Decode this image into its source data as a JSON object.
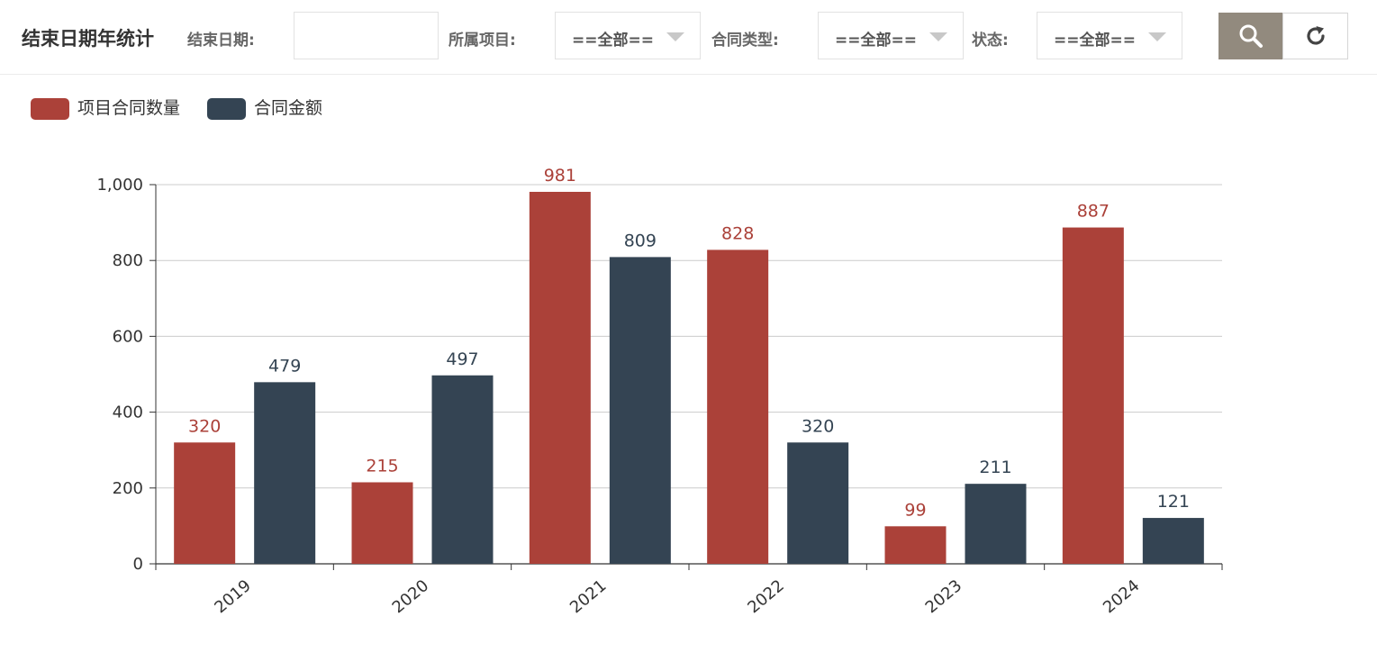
{
  "header": {
    "title": "结束日期年统计",
    "end_date_label": "结束日期:",
    "end_date_value": "",
    "project_label": "所属项目:",
    "project_value": "==全部==",
    "contract_type_label": "合同类型:",
    "contract_type_value": "==全部==",
    "status_label": "状态:",
    "status_value": "==全部==",
    "search_icon": "search-icon",
    "reset_icon": "refresh-icon",
    "search_button_color": "#928a7e"
  },
  "chart_data": {
    "type": "bar",
    "categories": [
      "2019",
      "2020",
      "2021",
      "2022",
      "2023",
      "2024"
    ],
    "series": [
      {
        "name": "项目合同数量",
        "color": "#ab4139",
        "values": [
          320,
          215,
          981,
          828,
          99,
          887
        ]
      },
      {
        "name": "合同金额",
        "color": "#344453",
        "values": [
          479,
          497,
          809,
          320,
          211,
          121
        ]
      }
    ],
    "ylim": [
      0,
      1000
    ],
    "yticks": [
      "0",
      "200",
      "400",
      "600",
      "800",
      "1,000"
    ],
    "grid": true,
    "legend_position": "top-left",
    "data_labels": true
  }
}
